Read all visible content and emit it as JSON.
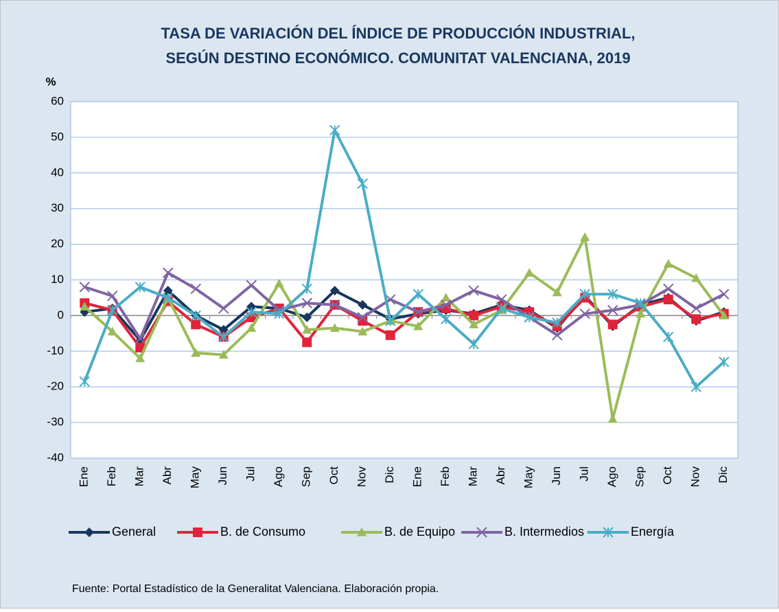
{
  "chart_data": {
    "type": "line",
    "title": [
      "TASA DE VARIACIÓN DEL ÍNDICE DE PRODUCCIÓN INDUSTRIAL,",
      "SEGÚN DESTINO ECONÓMICO. COMUNITAT VALENCIANA, 2019"
    ],
    "y_label": "%",
    "source": "Fuente:  Portal Estadístico de la Generalitat Valenciana. Elaboración propia.",
    "categories": [
      "Ene",
      "Feb",
      "Mar",
      "Abr",
      "May",
      "Jun",
      "Jul",
      "Ago",
      "Sep",
      "Oct",
      "Nov",
      "Dic",
      "Ene",
      "Feb",
      "Mar",
      "Abr",
      "May",
      "Jun",
      "Jul",
      "Ago",
      "Sep",
      "Oct",
      "Nov",
      "Dic"
    ],
    "ylim": [
      -40,
      60
    ],
    "yticks": [
      -40,
      -30,
      -20,
      -10,
      0,
      10,
      20,
      30,
      40,
      50,
      60
    ],
    "grid": true,
    "legend": "bottom",
    "series": [
      {
        "name": "General",
        "color": "#17375e",
        "marker": "diamond",
        "values": [
          1,
          2,
          -7,
          7,
          0,
          -4,
          2.5,
          2,
          -0.5,
          7,
          3,
          -1,
          0.5,
          1.5,
          0.5,
          3,
          1.5,
          -3.5,
          5.5,
          -3,
          3,
          5,
          -1.5,
          1
        ]
      },
      {
        "name": "B. de Consumo",
        "color": "#e0243a",
        "marker": "square",
        "values": [
          3.5,
          1.5,
          -9,
          4,
          -2.5,
          -6,
          -0.5,
          2,
          -7.5,
          3,
          -1.5,
          -5.5,
          1,
          2,
          0,
          2.5,
          1,
          -3,
          5,
          -2.5,
          2.5,
          4.5,
          -1,
          0.5
        ]
      },
      {
        "name": "B. de Equipo",
        "color": "#9bbb59",
        "marker": "triangle",
        "values": [
          2.5,
          -4.5,
          -12,
          5,
          -10.5,
          -11,
          -3.5,
          9,
          -4,
          -3.5,
          -4.5,
          -1.5,
          -3,
          5,
          -2.5,
          1.5,
          12,
          6.5,
          22,
          -29,
          0.5,
          14.5,
          10.5,
          0
        ]
      },
      {
        "name": "B. Intermedios",
        "color": "#8064a2",
        "marker": "x",
        "values": [
          8,
          5.5,
          -6.5,
          12,
          7.5,
          2,
          8.5,
          1.5,
          3.5,
          3,
          -0.5,
          4.5,
          1,
          3,
          7,
          4.5,
          -0.5,
          -5.5,
          0.5,
          1.5,
          3,
          7.5,
          2,
          6
        ]
      },
      {
        "name": "Energía",
        "color": "#4bacc6",
        "marker": "star",
        "values": [
          -18.5,
          1.5,
          8,
          5,
          0,
          -6,
          1,
          0.5,
          7.5,
          52,
          37,
          -1.5,
          6,
          -1,
          -8,
          2,
          -0.5,
          -2,
          6,
          6,
          3.5,
          -6,
          -20,
          -13
        ]
      }
    ]
  }
}
